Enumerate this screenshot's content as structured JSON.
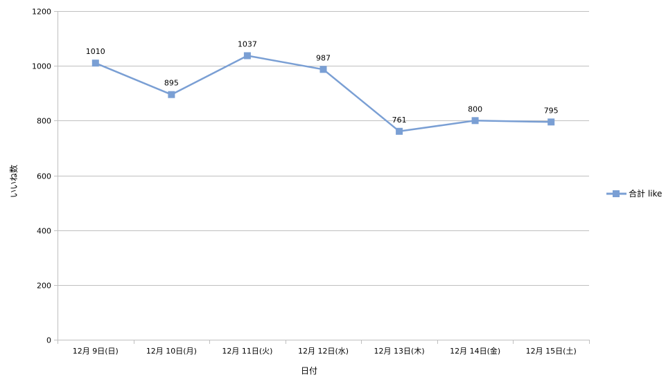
{
  "chart_data": {
    "type": "line",
    "title": "",
    "xlabel": "日付",
    "ylabel": "いいね数",
    "categories": [
      "12月 9日(日)",
      "12月 10日(月)",
      "12月 11日(火)",
      "12月 12日(水)",
      "12月 13日(木)",
      "12月 14日(金)",
      "12月 15日(土)"
    ],
    "series": [
      {
        "name": "合計 like",
        "values": [
          1010,
          895,
          1037,
          987,
          761,
          800,
          795
        ],
        "color": "#7a9fd4",
        "marker": "square"
      }
    ],
    "ylim": [
      0,
      1200
    ],
    "yticks": [
      0,
      200,
      400,
      600,
      800,
      1000,
      1200
    ],
    "grid": true,
    "legend_position": "right",
    "data_labels": true
  }
}
